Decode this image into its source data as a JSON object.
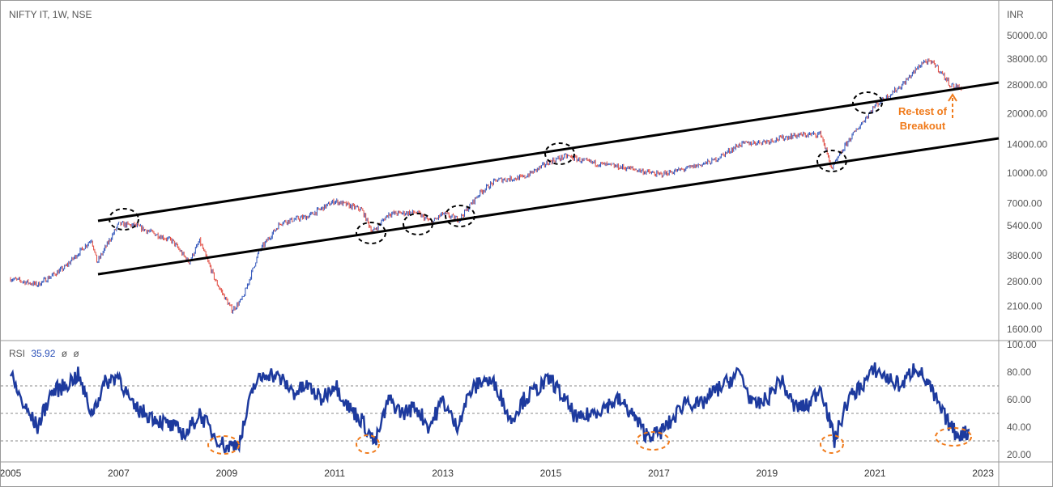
{
  "header": {
    "title": "NIFTY IT, 1W, NSE",
    "currency": "INR"
  },
  "rsi_legend": {
    "name": "RSI",
    "value": "35.92",
    "p1": "ø",
    "p2": "ø"
  },
  "annotation": {
    "line1": "Re-test of",
    "line2": "Breakout"
  },
  "colors": {
    "up": "#2a4fb8",
    "down": "#e0463c",
    "rsi": "#1d3a9e",
    "annot": "#f07a1a"
  },
  "chart_data": [
    {
      "type": "line",
      "title": "NIFTY IT, 1W, NSE",
      "ylabel": "INR",
      "yscale": "log",
      "ylim": [
        1450,
        62000
      ],
      "y_ticks": [
        "50000.00",
        "38000.00",
        "28000.00",
        "20000.00",
        "14000.00",
        "10000.00",
        "7000.00",
        "5400.00",
        "3800.00",
        "2800.00",
        "2100.00",
        "1600.00"
      ],
      "x": [
        2005.0,
        2005.5,
        2006.0,
        2006.5,
        2006.6,
        2007.0,
        2007.3,
        2008.0,
        2008.3,
        2008.5,
        2008.8,
        2009.1,
        2009.3,
        2009.6,
        2010.0,
        2010.5,
        2011.0,
        2011.5,
        2011.7,
        2012.0,
        2012.5,
        2012.8,
        2013.0,
        2013.3,
        2013.7,
        2014.0,
        2014.5,
        2015.0,
        2015.3,
        2015.6,
        2016.0,
        2016.5,
        2017.0,
        2017.5,
        2018.0,
        2018.5,
        2019.0,
        2019.5,
        2020.0,
        2020.2,
        2020.5,
        2021.0,
        2021.5,
        2021.9,
        2022.1,
        2022.4,
        2022.6
      ],
      "values": [
        2900,
        2700,
        3300,
        4600,
        3500,
        5500,
        5400,
        4500,
        3500,
        4500,
        2800,
        2000,
        2300,
        4000,
        5600,
        6000,
        7200,
        6500,
        5000,
        6200,
        6300,
        5600,
        6200,
        5800,
        8000,
        9200,
        9500,
        11500,
        12200,
        11500,
        11000,
        10500,
        9800,
        10500,
        11500,
        14000,
        14500,
        15500,
        15800,
        10500,
        14500,
        22000,
        28000,
        37000,
        36000,
        28000,
        27000
      ]
    },
    {
      "type": "line",
      "title": "RSI",
      "ylim": [
        10,
        100
      ],
      "y_ticks": [
        "100.00",
        "80.00",
        "60.00",
        "40.00",
        "20.00"
      ],
      "levels": [
        70,
        50,
        30
      ],
      "x_ticks": [
        "2005",
        "2007",
        "2009",
        "2011",
        "2013",
        "2015",
        "2017",
        "2019",
        "2021",
        "2023"
      ],
      "values": [
        78,
        55,
        40,
        65,
        70,
        78,
        50,
        72,
        78,
        55,
        50,
        45,
        40,
        35,
        50,
        35,
        25,
        30,
        70,
        80,
        75,
        65,
        70,
        60,
        72,
        55,
        45,
        28,
        60,
        50,
        55,
        40,
        60,
        40,
        65,
        75,
        70,
        45,
        60,
        68,
        75,
        60,
        45,
        50,
        55,
        60,
        50,
        35,
        35,
        45,
        60,
        55,
        65,
        72,
        80,
        55,
        60,
        75,
        55,
        55,
        70,
        30,
        60,
        70,
        82,
        75,
        70,
        85,
        70,
        50,
        35,
        36
      ],
      "x_start": 2005.0,
      "x_step": 0.25
    }
  ]
}
